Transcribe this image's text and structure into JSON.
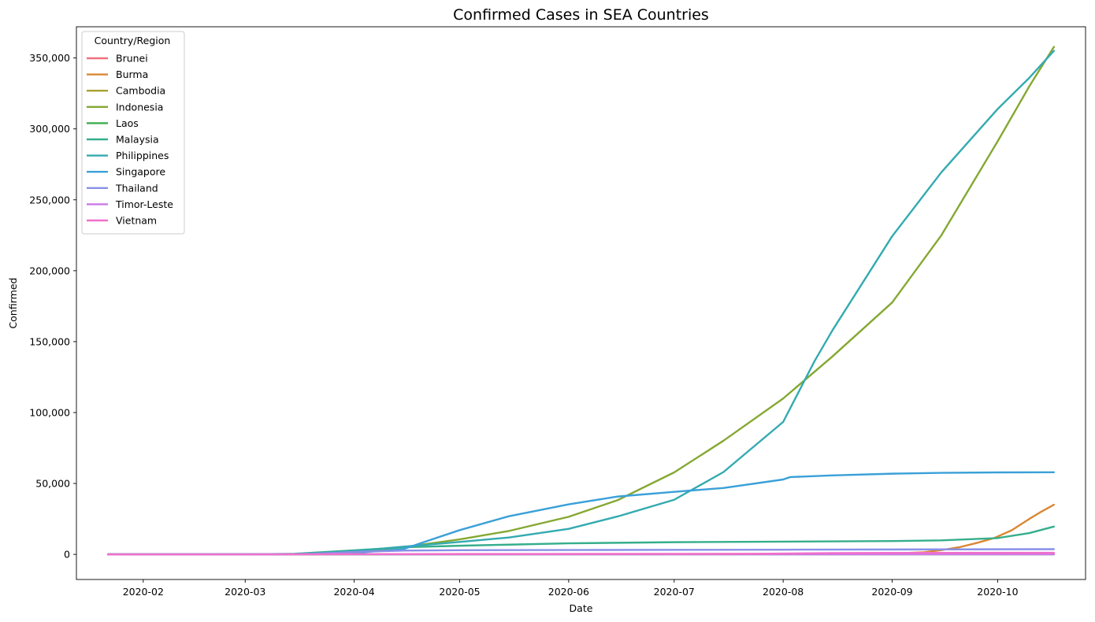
{
  "chart_data": {
    "type": "line",
    "title": "Confirmed Cases in SEA Countries",
    "xlabel": "Date",
    "ylabel": "Confirmed",
    "x_range": [
      "2020-01-13",
      "2020-10-26"
    ],
    "ylim": [
      -17700,
      372000
    ],
    "x_ticks": [
      "2020-02",
      "2020-03",
      "2020-04",
      "2020-05",
      "2020-06",
      "2020-07",
      "2020-08",
      "2020-09",
      "2020-10"
    ],
    "y_ticks": [
      "0",
      "50,000",
      "100,000",
      "150,000",
      "200,000",
      "250,000",
      "300,000",
      "350,000"
    ],
    "grid": false,
    "legend": {
      "title": "Country/Region",
      "placement": "top-left"
    },
    "series": [
      {
        "name": "Brunei",
        "color": "#f0707c",
        "points": [
          [
            "2020-01-22",
            0
          ],
          [
            "2020-03-15",
            50
          ],
          [
            "2020-04-15",
            136
          ],
          [
            "2020-10-17",
            146
          ]
        ]
      },
      {
        "name": "Burma",
        "color": "#d98833",
        "points": [
          [
            "2020-01-22",
            0
          ],
          [
            "2020-08-15",
            370
          ],
          [
            "2020-09-01",
            600
          ],
          [
            "2020-09-10",
            1500
          ],
          [
            "2020-09-15",
            3000
          ],
          [
            "2020-09-20",
            5000
          ],
          [
            "2020-09-25",
            8000
          ],
          [
            "2020-09-30",
            11500
          ],
          [
            "2020-10-05",
            17000
          ],
          [
            "2020-10-10",
            25000
          ],
          [
            "2020-10-13",
            29500
          ],
          [
            "2020-10-17",
            35000
          ]
        ]
      },
      {
        "name": "Cambodia",
        "color": "#a8a030",
        "points": [
          [
            "2020-01-22",
            0
          ],
          [
            "2020-04-01",
            100
          ],
          [
            "2020-10-17",
            285
          ]
        ]
      },
      {
        "name": "Indonesia",
        "color": "#85a832",
        "points": [
          [
            "2020-01-22",
            0
          ],
          [
            "2020-03-10",
            0
          ],
          [
            "2020-03-20",
            370
          ],
          [
            "2020-04-01",
            1700
          ],
          [
            "2020-04-15",
            5100
          ],
          [
            "2020-05-01",
            10600
          ],
          [
            "2020-05-15",
            16500
          ],
          [
            "2020-06-01",
            26500
          ],
          [
            "2020-06-15",
            38300
          ],
          [
            "2020-07-01",
            57800
          ],
          [
            "2020-07-15",
            80100
          ],
          [
            "2020-08-01",
            109900
          ],
          [
            "2020-08-15",
            139500
          ],
          [
            "2020-09-01",
            177600
          ],
          [
            "2020-09-15",
            225000
          ],
          [
            "2020-10-01",
            291200
          ],
          [
            "2020-10-10",
            330000
          ],
          [
            "2020-10-17",
            357800
          ]
        ]
      },
      {
        "name": "Laos",
        "color": "#3aae4c",
        "points": [
          [
            "2020-01-22",
            0
          ],
          [
            "2020-03-25",
            10
          ],
          [
            "2020-10-17",
            23
          ]
        ]
      },
      {
        "name": "Malaysia",
        "color": "#35ae8c",
        "points": [
          [
            "2020-01-22",
            0
          ],
          [
            "2020-03-01",
            29
          ],
          [
            "2020-03-15",
            428
          ],
          [
            "2020-04-01",
            2900
          ],
          [
            "2020-04-15",
            5000
          ],
          [
            "2020-05-01",
            6100
          ],
          [
            "2020-06-01",
            7800
          ],
          [
            "2020-07-01",
            8600
          ],
          [
            "2020-08-01",
            9000
          ],
          [
            "2020-09-01",
            9400
          ],
          [
            "2020-09-15",
            9900
          ],
          [
            "2020-10-01",
            11500
          ],
          [
            "2020-10-10",
            15000
          ],
          [
            "2020-10-17",
            19600
          ]
        ]
      },
      {
        "name": "Philippines",
        "color": "#33aab0",
        "points": [
          [
            "2020-01-22",
            0
          ],
          [
            "2020-03-15",
            140
          ],
          [
            "2020-04-01",
            2300
          ],
          [
            "2020-04-15",
            5450
          ],
          [
            "2020-05-01",
            8800
          ],
          [
            "2020-05-15",
            11900
          ],
          [
            "2020-06-01",
            18000
          ],
          [
            "2020-06-15",
            26800
          ],
          [
            "2020-07-01",
            38500
          ],
          [
            "2020-07-15",
            58000
          ],
          [
            "2020-08-01",
            93400
          ],
          [
            "2020-08-10",
            136600
          ],
          [
            "2020-08-15",
            157900
          ],
          [
            "2020-09-01",
            224300
          ],
          [
            "2020-09-15",
            269400
          ],
          [
            "2020-10-01",
            314000
          ],
          [
            "2020-10-10",
            336000
          ],
          [
            "2020-10-17",
            355000
          ]
        ]
      },
      {
        "name": "Singapore",
        "color": "#3aa0d8",
        "points": [
          [
            "2020-01-22",
            0
          ],
          [
            "2020-03-01",
            106
          ],
          [
            "2020-03-15",
            226
          ],
          [
            "2020-04-01",
            1000
          ],
          [
            "2020-04-15",
            3700
          ],
          [
            "2020-04-20",
            8000
          ],
          [
            "2020-05-01",
            17100
          ],
          [
            "2020-05-15",
            26900
          ],
          [
            "2020-06-01",
            35300
          ],
          [
            "2020-06-15",
            40800
          ],
          [
            "2020-07-01",
            44100
          ],
          [
            "2020-07-15",
            46800
          ],
          [
            "2020-08-01",
            52800
          ],
          [
            "2020-08-03",
            54500
          ],
          [
            "2020-08-15",
            55700
          ],
          [
            "2020-09-01",
            56900
          ],
          [
            "2020-09-15",
            57500
          ],
          [
            "2020-10-01",
            57800
          ],
          [
            "2020-10-17",
            57900
          ]
        ]
      },
      {
        "name": "Thailand",
        "color": "#8890e8",
        "points": [
          [
            "2020-01-22",
            4
          ],
          [
            "2020-03-10",
            53
          ],
          [
            "2020-03-20",
            322
          ],
          [
            "2020-04-01",
            1770
          ],
          [
            "2020-04-15",
            2640
          ],
          [
            "2020-05-01",
            2950
          ],
          [
            "2020-06-01",
            3080
          ],
          [
            "2020-08-01",
            3310
          ],
          [
            "2020-10-17",
            3670
          ]
        ]
      },
      {
        "name": "Timor-Leste",
        "color": "#cc78e6",
        "points": [
          [
            "2020-01-22",
            0
          ],
          [
            "2020-04-15",
            10
          ],
          [
            "2020-10-17",
            30
          ]
        ]
      },
      {
        "name": "Vietnam",
        "color": "#f070cc",
        "points": [
          [
            "2020-01-22",
            0
          ],
          [
            "2020-03-01",
            16
          ],
          [
            "2020-04-01",
            218
          ],
          [
            "2020-05-01",
            270
          ],
          [
            "2020-07-25",
            420
          ],
          [
            "2020-08-15",
            960
          ],
          [
            "2020-09-01",
            1040
          ],
          [
            "2020-10-17",
            1130
          ]
        ]
      }
    ]
  }
}
